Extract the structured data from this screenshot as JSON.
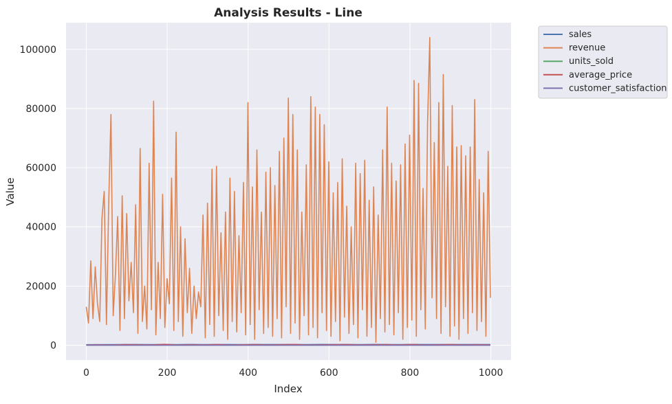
{
  "chart_data": {
    "type": "line",
    "title": "Analysis Results - Line",
    "xlabel": "Index",
    "ylabel": "Value",
    "xlim": [
      -50,
      1050
    ],
    "ylim": [
      -5000,
      109000
    ],
    "x_ticks": [
      0,
      200,
      400,
      600,
      800,
      1000
    ],
    "y_ticks": [
      0,
      20000,
      40000,
      60000,
      80000,
      100000
    ],
    "grid": true,
    "legend_position": "outside-top-right",
    "x_range": [
      0,
      999
    ],
    "series": [
      {
        "name": "sales",
        "color": "#4c72b0",
        "values": [
          190,
          210,
          205,
          230,
          250,
          215,
          240,
          200,
          260,
          225,
          230,
          245,
          210,
          270,
          235,
          255,
          240,
          220,
          265,
          230,
          250,
          225,
          280,
          240,
          215,
          260,
          235,
          250,
          245,
          230,
          255,
          240
        ]
      },
      {
        "name": "revenue",
        "color": "#dd8452",
        "values": [
          13000,
          7500,
          28500,
          9000,
          26500,
          14000,
          8000,
          43000,
          52000,
          7000,
          48000,
          78000,
          10000,
          24000,
          43500,
          5000,
          50500,
          9000,
          44500,
          15000,
          28000,
          11000,
          47500,
          4000,
          66500,
          8000,
          20000,
          5500,
          61500,
          12000,
          82500,
          3500,
          28000,
          9000,
          51000,
          6000,
          22500,
          14000,
          56500,
          5000,
          72000,
          8000,
          40000,
          3000,
          36000,
          11000,
          26000,
          4000,
          20000,
          9000,
          18000,
          13000,
          44000,
          2500,
          48000,
          7000,
          59500,
          3000,
          60500,
          10000,
          38000,
          5000,
          45000,
          2000,
          56500,
          8000,
          52000,
          4500,
          37000,
          11000,
          55000,
          3500,
          82000,
          7000,
          53500,
          2000,
          66000,
          12000,
          45000,
          4000,
          58500,
          6000,
          60000,
          3000,
          54000,
          9000,
          65500,
          2500,
          70000,
          13000,
          83500,
          4000,
          78000,
          7500,
          66000,
          2000,
          45000,
          10000,
          61000,
          3500,
          84000,
          6000,
          80500,
          2500,
          78000,
          11000,
          74500,
          5000,
          62000,
          3000,
          51500,
          8000,
          55000,
          1500,
          63000,
          9500,
          47000,
          4000,
          40000,
          7000,
          61500,
          2500,
          58000,
          12000,
          62500,
          3000,
          49000,
          6000,
          53500,
          1000,
          44000,
          9000,
          66000,
          4500,
          80500,
          7000,
          61500,
          3500,
          55500,
          11000,
          61000,
          2000,
          68000,
          6000,
          71000,
          8500,
          89500,
          3000,
          88500,
          12000,
          53000,
          5500,
          75000,
          104000,
          16000,
          68500,
          9000,
          82000,
          4000,
          91500,
          13000,
          60500,
          3000,
          81000,
          6500,
          67000,
          2000,
          67500,
          9000,
          64000,
          4000,
          67000,
          11000,
          83000,
          5000,
          56000,
          8000,
          51500,
          3000,
          65500,
          16000
        ]
      },
      {
        "name": "units_sold",
        "color": "#55a868",
        "values": [
          20,
          35,
          28,
          40,
          22,
          38,
          30,
          45,
          25,
          33,
          41,
          27,
          36,
          24,
          39,
          31,
          44,
          26,
          37,
          29,
          42,
          23,
          34,
          40,
          28,
          32,
          46,
          21,
          38,
          35,
          30,
          27
        ]
      },
      {
        "name": "average_price",
        "color": "#c44e52",
        "values": [
          50,
          120,
          80,
          200,
          150,
          90,
          300,
          60,
          180,
          110,
          250,
          70,
          140,
          220,
          95,
          170,
          280,
          65,
          130,
          190,
          240,
          85,
          160,
          210,
          100,
          270,
          75,
          145,
          230,
          105,
          185,
          125
        ]
      },
      {
        "name": "customer_satisfaction",
        "color": "#8172b3",
        "values": [
          3,
          4,
          5,
          3,
          4,
          5,
          2,
          4,
          3,
          5,
          4,
          3,
          5,
          4,
          3,
          4,
          5,
          3,
          4,
          2,
          5,
          4,
          3,
          4,
          5,
          3,
          4,
          5,
          3,
          4,
          4,
          3
        ]
      }
    ]
  }
}
